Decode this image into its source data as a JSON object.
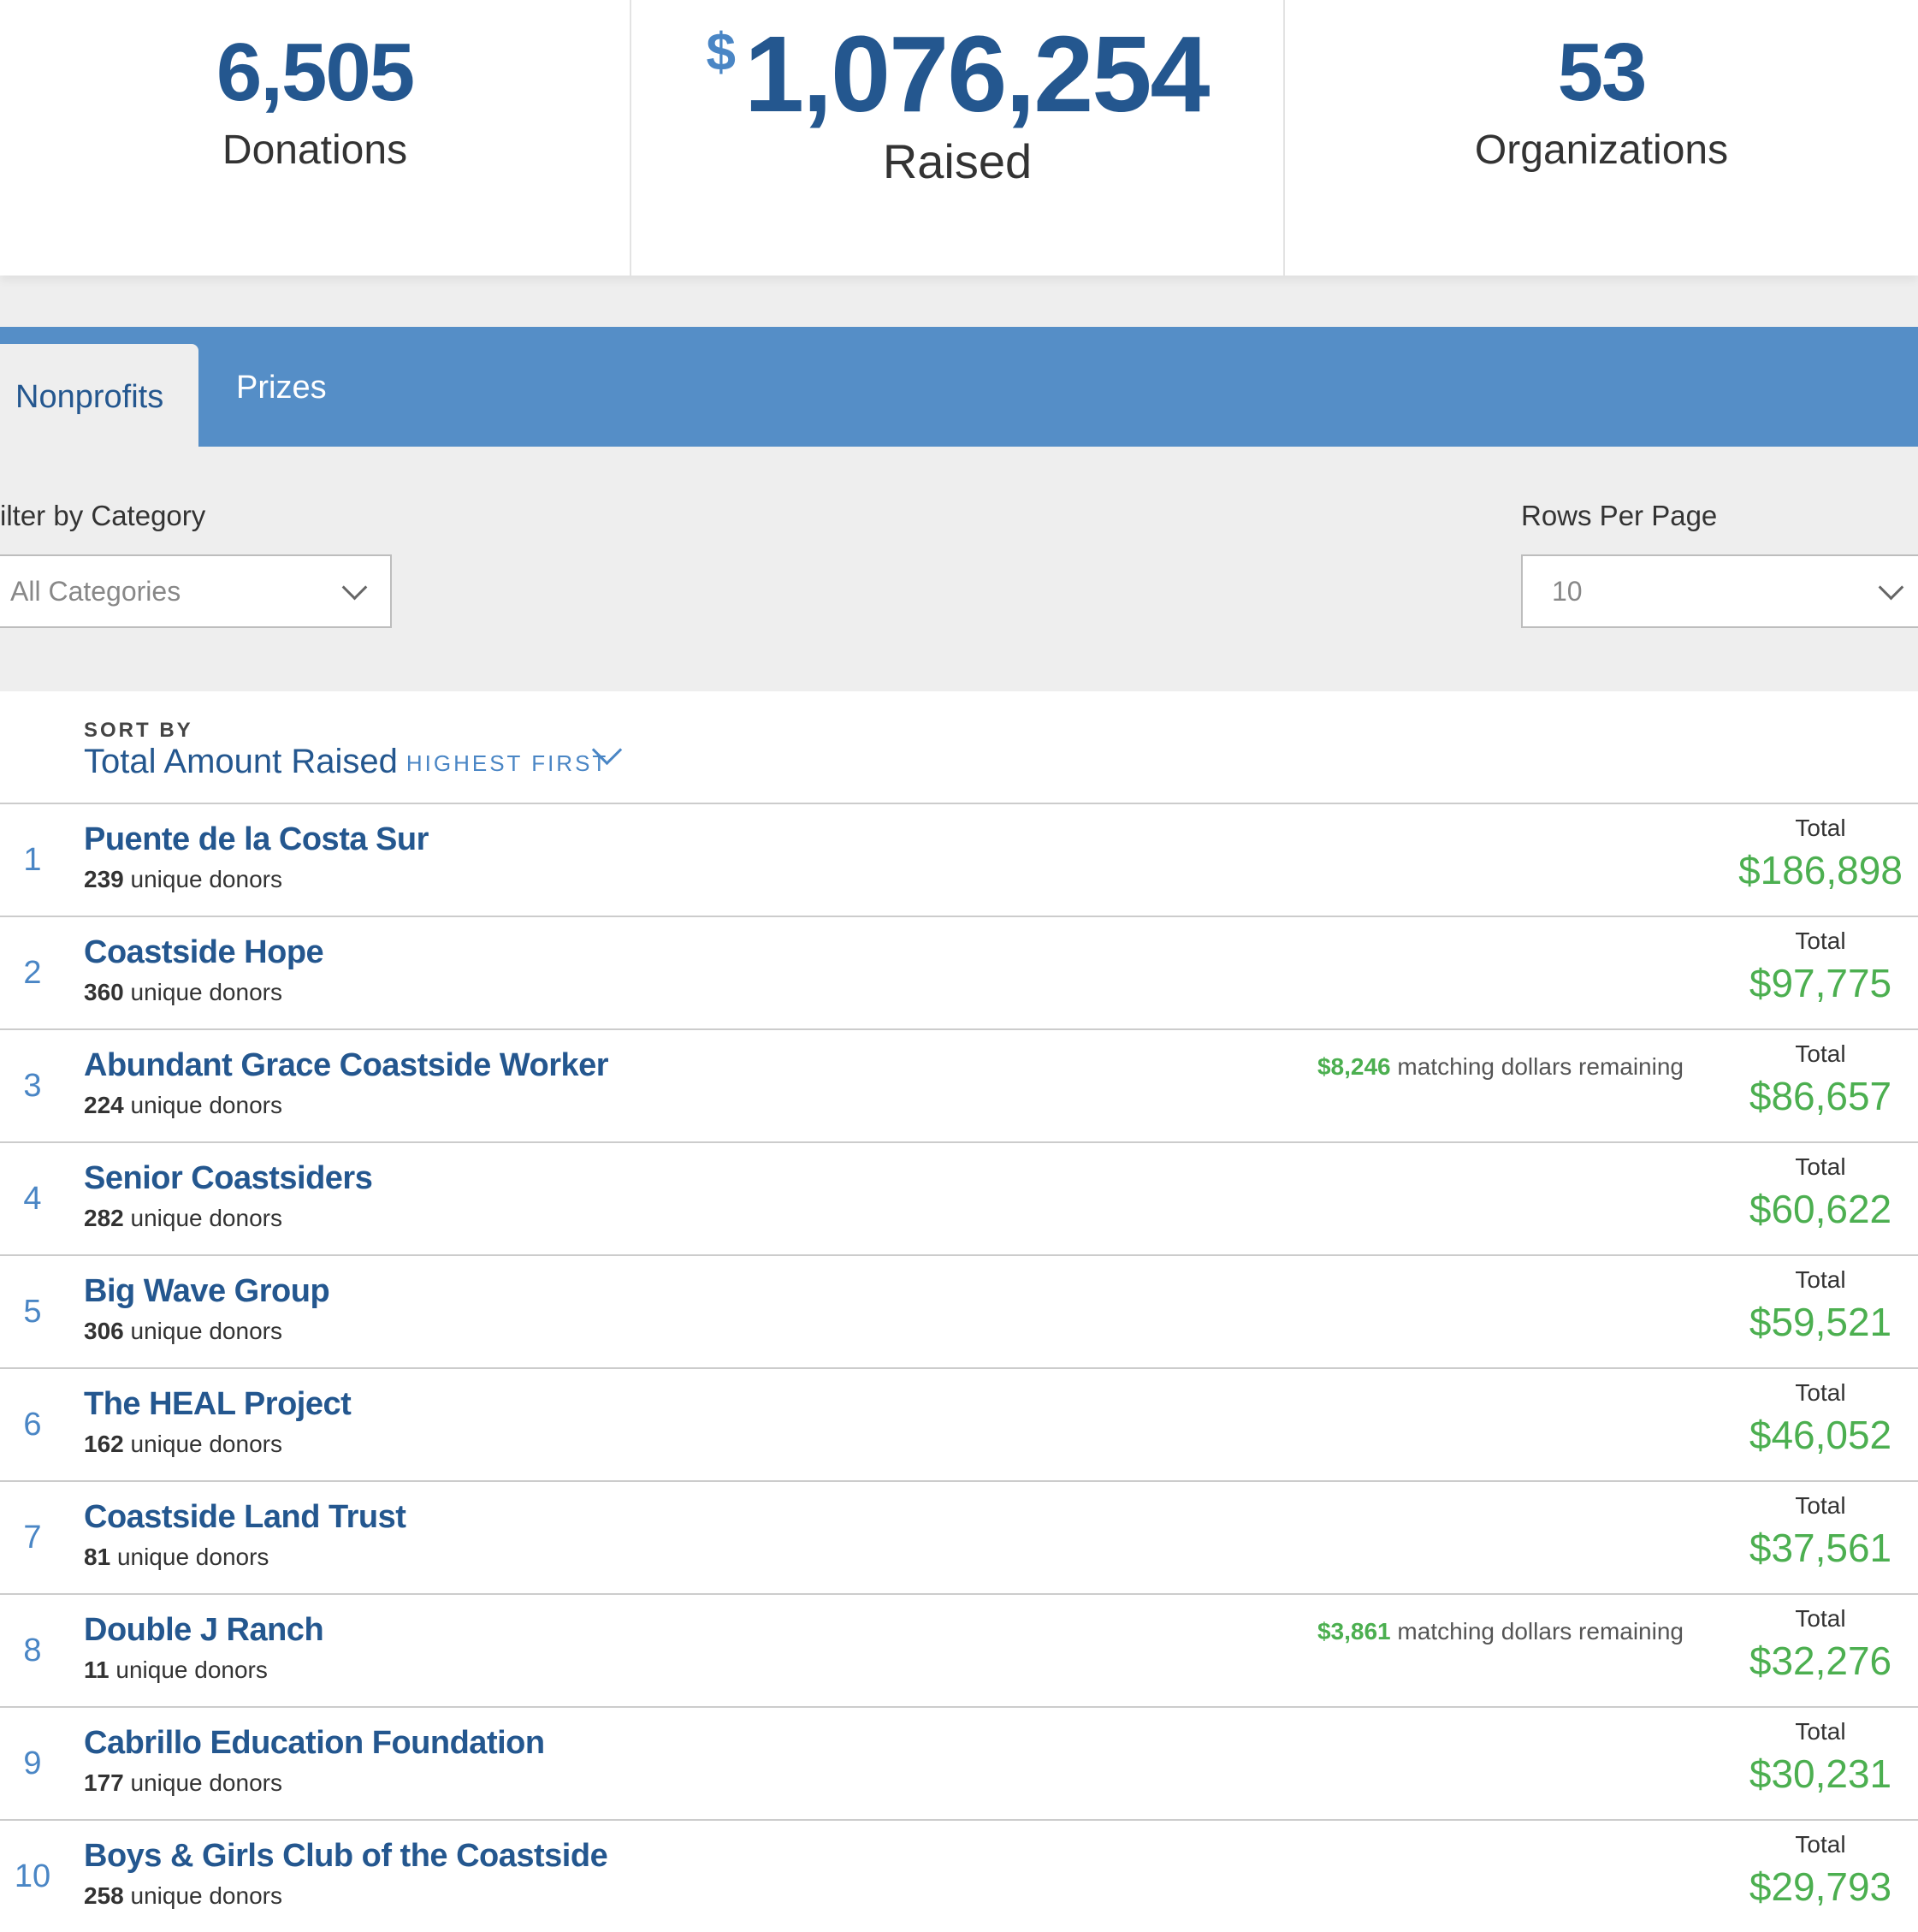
{
  "stats": {
    "donations": {
      "value": "6,505",
      "label": "Donations"
    },
    "raised": {
      "currency": "$",
      "value": "1,076,254",
      "label": "Raised"
    },
    "organizations": {
      "value": "53",
      "label": "Organizations"
    }
  },
  "tabs": {
    "nonprofits": "Nonprofits",
    "prizes": "Prizes",
    "active": "Nonprofits"
  },
  "filters": {
    "category_label": "ilter by Category",
    "category_value": "All Categories",
    "rows_label": "Rows Per Page",
    "rows_value": "10"
  },
  "sort": {
    "by_label": "SORT BY",
    "field": "Total Amount Raised",
    "order": "HIGHEST FIRST"
  },
  "list": {
    "total_label": "Total",
    "donors_suffix": "unique donors",
    "matching_text": "matching dollars remaining",
    "items": [
      {
        "rank": "1",
        "name": "Puente de la Costa Sur",
        "donors": "239",
        "total": "$186,898",
        "matching": ""
      },
      {
        "rank": "2",
        "name": "Coastside Hope",
        "donors": "360",
        "total": "$97,775",
        "matching": ""
      },
      {
        "rank": "3",
        "name": "Abundant Grace Coastside Worker",
        "donors": "224",
        "total": "$86,657",
        "matching": "$8,246"
      },
      {
        "rank": "4",
        "name": "Senior Coastsiders",
        "donors": "282",
        "total": "$60,622",
        "matching": ""
      },
      {
        "rank": "5",
        "name": "Big Wave Group",
        "donors": "306",
        "total": "$59,521",
        "matching": ""
      },
      {
        "rank": "6",
        "name": "The HEAL Project",
        "donors": "162",
        "total": "$46,052",
        "matching": ""
      },
      {
        "rank": "7",
        "name": "Coastside Land Trust",
        "donors": "81",
        "total": "$37,561",
        "matching": ""
      },
      {
        "rank": "8",
        "name": "Double J Ranch",
        "donors": "11",
        "total": "$32,276",
        "matching": "$3,861"
      },
      {
        "rank": "9",
        "name": "Cabrillo Education Foundation",
        "donors": "177",
        "total": "$30,231",
        "matching": ""
      },
      {
        "rank": "10",
        "name": "Boys & Girls Club of the Coastside",
        "donors": "258",
        "total": "$29,793",
        "matching": ""
      }
    ]
  },
  "colors": {
    "brand_blue": "#24578f",
    "accent_blue": "#558ec7",
    "money_green": "#4caf50",
    "band_grey": "#eeeeee"
  }
}
